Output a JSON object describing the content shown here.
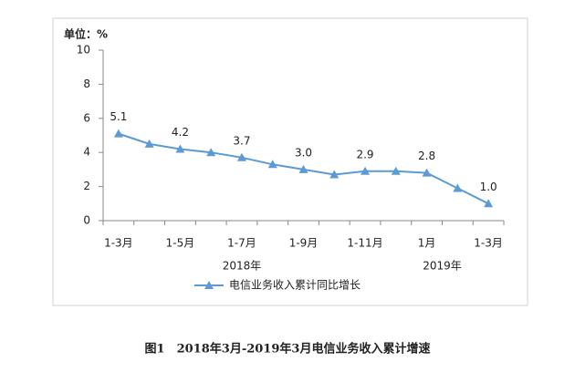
{
  "chart_data": {
    "type": "line",
    "unit_label": "单位：%",
    "caption": "图1　2018年3月-2019年3月电信业务收入累计增速",
    "categories": [
      "1-3月",
      null,
      "1-5月",
      null,
      "1-7月",
      null,
      "1-9月",
      null,
      "1-11月",
      null,
      "1月",
      null,
      "1-3月"
    ],
    "x_groups": [
      "2018年",
      "2019年"
    ],
    "series": [
      {
        "name": "电信业务收入累计同比增长",
        "color": "#5b9bd5",
        "values": [
          5.1,
          4.5,
          4.2,
          4.0,
          3.7,
          3.3,
          3.0,
          2.7,
          2.9,
          2.9,
          2.8,
          1.9,
          1.0
        ],
        "value_labels": [
          "5.1",
          null,
          "4.2",
          null,
          "3.7",
          null,
          "3.0",
          null,
          "2.9",
          null,
          "2.8",
          null,
          "1.0"
        ]
      }
    ],
    "ylim": [
      0,
      10
    ],
    "yticks": [
      0,
      2,
      4,
      6,
      8,
      10
    ],
    "grid": false,
    "legend": "bottom"
  }
}
